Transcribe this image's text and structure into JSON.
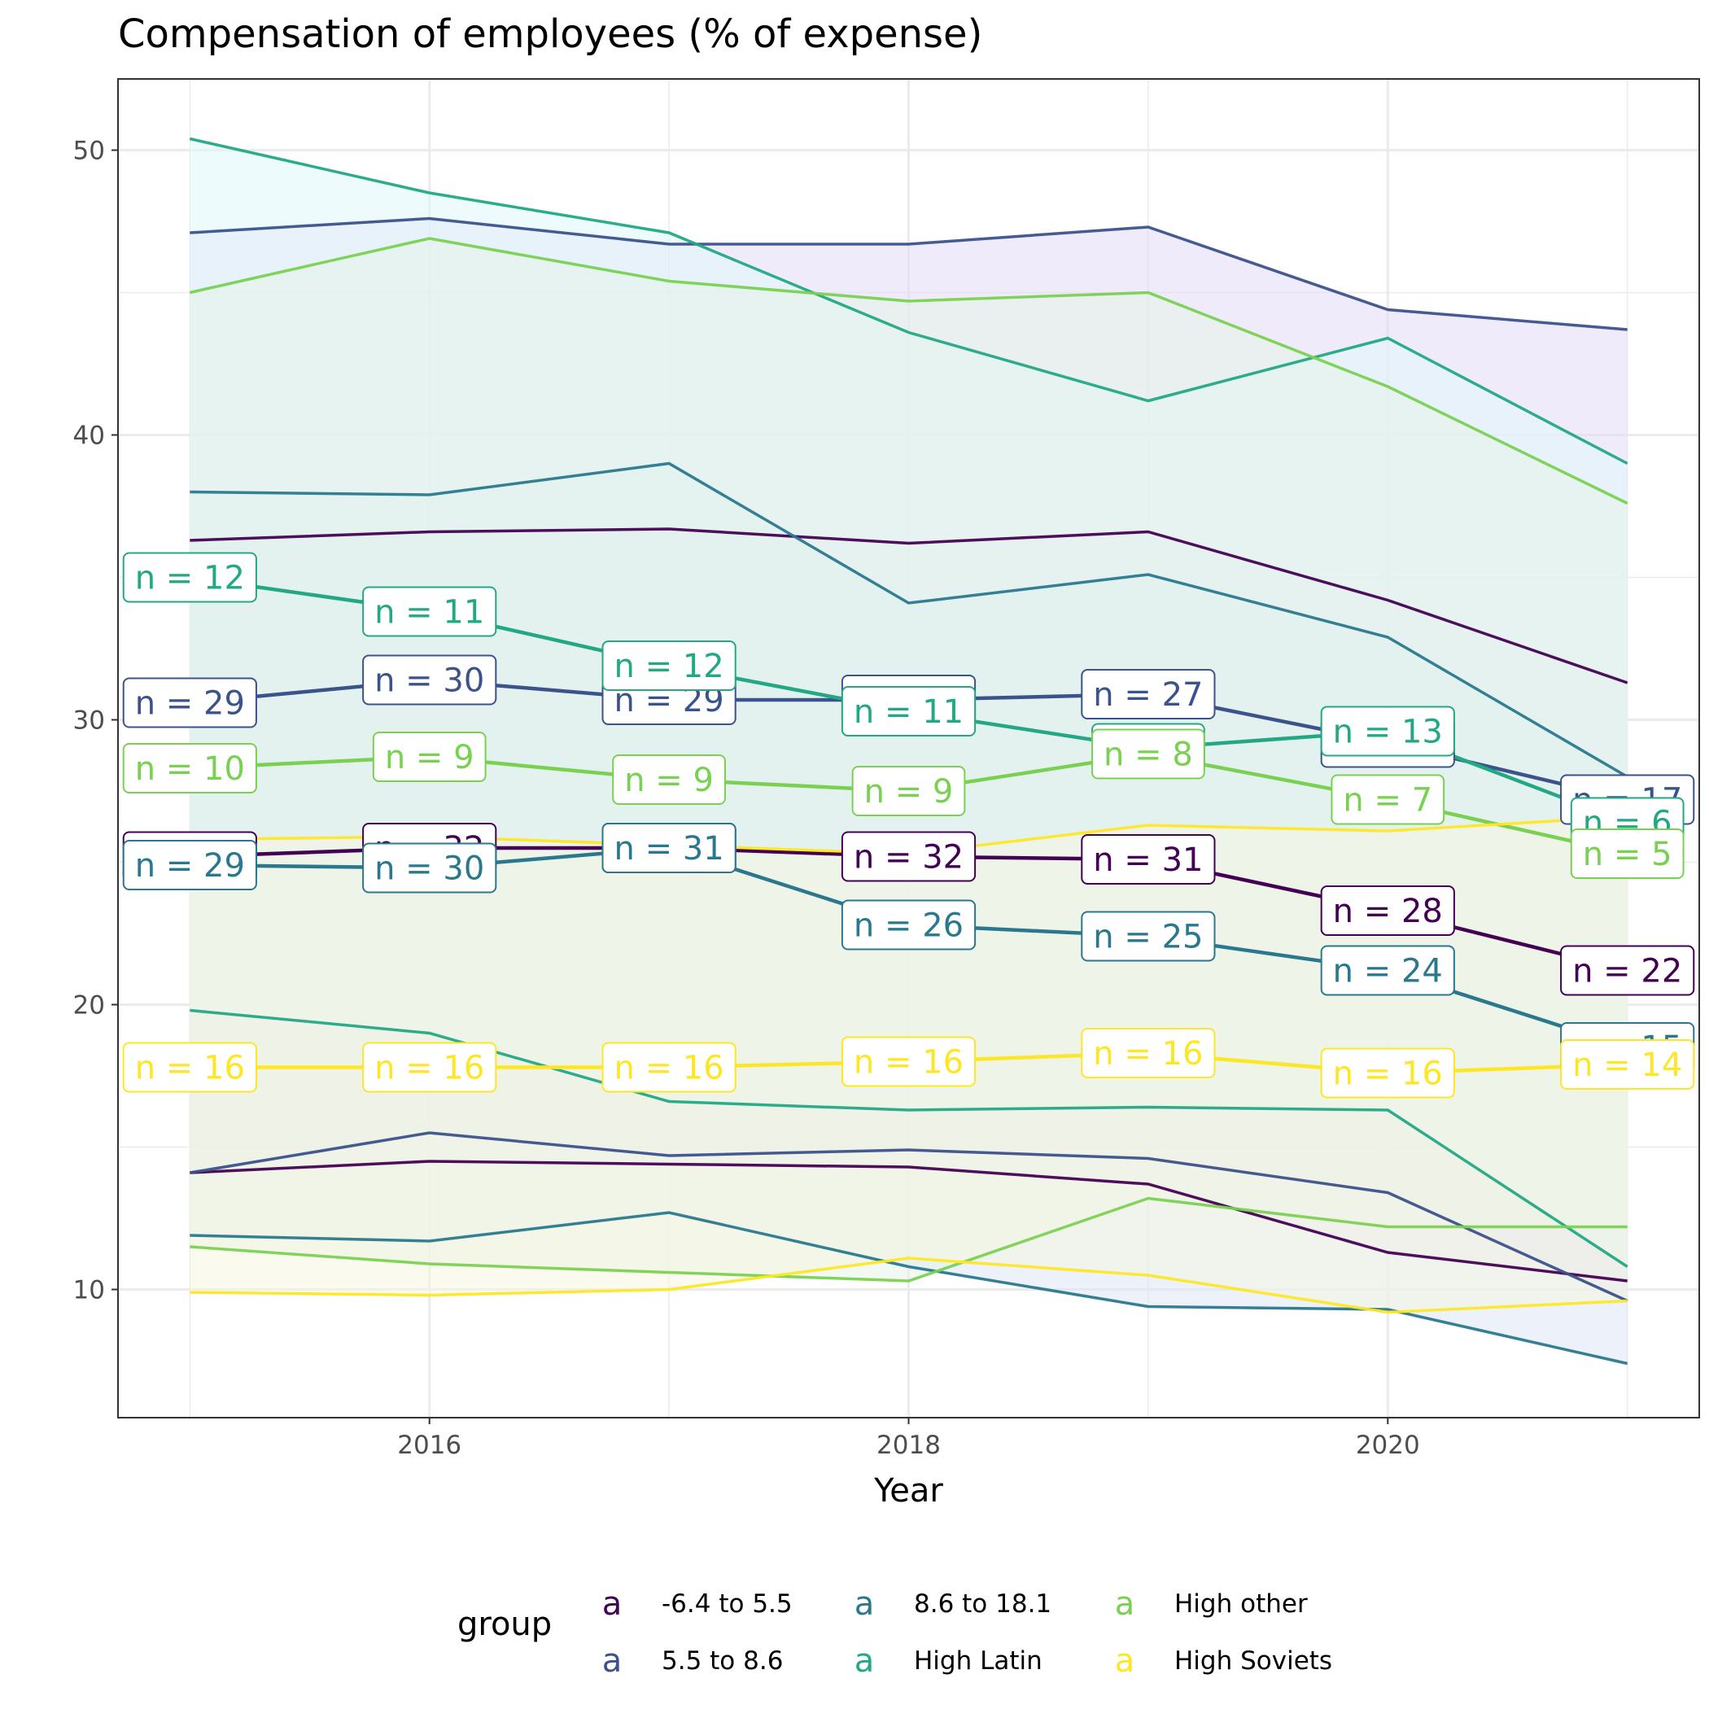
{
  "chart_data": {
    "type": "line",
    "title": "Compensation of employees (% of expense)",
    "xlabel": "Year",
    "ylabel": "",
    "xlim": [
      2014.7,
      2021.3
    ],
    "ylim": [
      5.5,
      52.5
    ],
    "x_ticks": [
      2016,
      2018,
      2020
    ],
    "y_ticks": [
      10,
      20,
      30,
      40,
      50
    ],
    "grid": true,
    "legend": {
      "title": "group",
      "position": "bottom"
    },
    "x": [
      2015,
      2016,
      2017,
      2018,
      2019,
      2020,
      2021
    ],
    "series": [
      {
        "name": "-6.4 to 5.5",
        "color": "#440154",
        "fill": "#FDE7FF",
        "median": [
          25.2,
          25.5,
          25.5,
          25.2,
          25.1,
          23.3,
          21.2
        ],
        "upper": [
          36.3,
          36.6,
          36.7,
          36.2,
          36.6,
          34.2,
          31.3
        ],
        "lower": [
          14.1,
          14.5,
          14.4,
          14.3,
          13.7,
          11.3,
          10.3
        ],
        "n": [
          "25",
          "32",
          "25",
          "32",
          "31",
          "28",
          "22"
        ]
      },
      {
        "name": "5.5 to 8.6",
        "color": "#3B528B",
        "fill": "#E3DAF7",
        "median": [
          30.6,
          31.4,
          30.7,
          30.7,
          30.9,
          29.2,
          27.2
        ],
        "upper": [
          47.1,
          47.6,
          46.7,
          46.7,
          47.3,
          44.4,
          43.7
        ],
        "lower": [
          14.1,
          15.5,
          14.7,
          14.9,
          14.6,
          13.4,
          9.6
        ],
        "n": [
          "29",
          "30",
          "29",
          "30",
          "27",
          "25",
          "17"
        ]
      },
      {
        "name": "8.6 to 18.1",
        "color": "#21908C",
        "stroke": "#2A788E",
        "fill": "#DDE5F5",
        "median": [
          24.9,
          24.8,
          25.5,
          22.8,
          22.4,
          21.2,
          18.5
        ],
        "upper": [
          38.0,
          37.9,
          39.0,
          34.1,
          35.1,
          32.9,
          28.0
        ],
        "lower": [
          11.9,
          11.7,
          12.7,
          10.8,
          9.4,
          9.3,
          7.4
        ],
        "n": [
          "29",
          "30",
          "31",
          "26",
          "25",
          "24",
          "15"
        ]
      },
      {
        "name": "High Latin",
        "color": "#22A884",
        "fill": "#E0F7FA",
        "median": [
          35.0,
          33.8,
          31.9,
          30.3,
          29.0,
          29.6,
          26.4
        ],
        "upper": [
          50.4,
          48.5,
          47.1,
          43.6,
          41.2,
          43.4,
          39.0
        ],
        "lower": [
          19.8,
          19.0,
          16.6,
          16.3,
          16.4,
          16.3,
          10.8
        ],
        "n": [
          "12",
          "11",
          "12",
          "11",
          "8",
          "13",
          "6"
        ]
      },
      {
        "name": "High other",
        "color": "#7AD151",
        "fill": "#E6F4E7",
        "median": [
          28.3,
          28.7,
          27.9,
          27.5,
          28.8,
          27.2,
          25.3
        ],
        "upper": [
          45.0,
          46.9,
          45.4,
          44.7,
          45.0,
          41.7,
          37.6
        ],
        "lower": [
          11.5,
          10.9,
          10.6,
          10.3,
          13.2,
          12.2,
          12.2
        ],
        "n": [
          "10",
          "9",
          "9",
          "9",
          "8",
          "7",
          "5"
        ]
      },
      {
        "name": "High Soviets",
        "color": "#FDE725",
        "fill": "#F5F5E0",
        "median": [
          17.8,
          17.8,
          17.8,
          18.0,
          18.3,
          17.6,
          17.9
        ],
        "upper": [
          25.8,
          25.9,
          25.6,
          25.3,
          26.3,
          26.1,
          26.6
        ],
        "lower": [
          9.9,
          9.8,
          10.0,
          11.1,
          10.5,
          9.2,
          9.6
        ],
        "n": [
          "16",
          "16",
          "16",
          "16",
          "16",
          "16",
          "14"
        ]
      }
    ]
  },
  "legend_labels": [
    "-6.4 to 5.5",
    "5.5 to 8.6",
    "8.6 to 18.1",
    "High Latin",
    "High other",
    "High Soviets"
  ],
  "legend_key_glyph": "a"
}
